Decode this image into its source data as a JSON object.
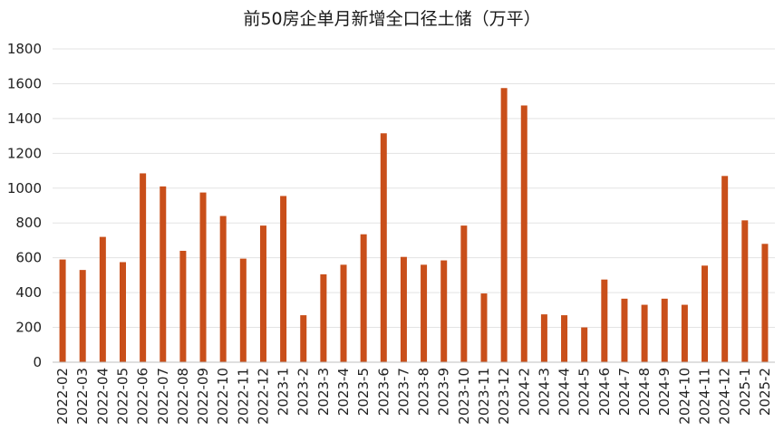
{
  "chart_data": {
    "type": "bar",
    "title": "前50房企单月新增全口径土储（万平）",
    "xlabel": "",
    "ylabel": "",
    "ylim": [
      0,
      1800
    ],
    "yticks": [
      0,
      200,
      400,
      600,
      800,
      1000,
      1200,
      1400,
      1600,
      1800
    ],
    "grid": true,
    "bar_color": "#c94f1a",
    "categories": [
      "2022-02",
      "2022-03",
      "2022-04",
      "2022-05",
      "2022-06",
      "2022-07",
      "2022-08",
      "2022-09",
      "2022-10",
      "2022-11",
      "2022-12",
      "2023-1",
      "2023-2",
      "2023-3",
      "2023-4",
      "2023-5",
      "2023-6",
      "2023-7",
      "2023-8",
      "2023-9",
      "2023-10",
      "2023-11",
      "2023-12",
      "2024-2",
      "2024-3",
      "2024-4",
      "2024-5",
      "2024-6",
      "2024-7",
      "2024-8",
      "2024-9",
      "2024-10",
      "2024-11",
      "2024-12",
      "2025-1",
      "2025-2"
    ],
    "values": [
      590,
      530,
      720,
      575,
      1085,
      1010,
      640,
      975,
      840,
      595,
      785,
      955,
      270,
      505,
      560,
      735,
      1315,
      605,
      560,
      585,
      785,
      395,
      1575,
      1475,
      275,
      270,
      200,
      475,
      365,
      330,
      365,
      330,
      555,
      1070,
      815,
      680
    ]
  }
}
